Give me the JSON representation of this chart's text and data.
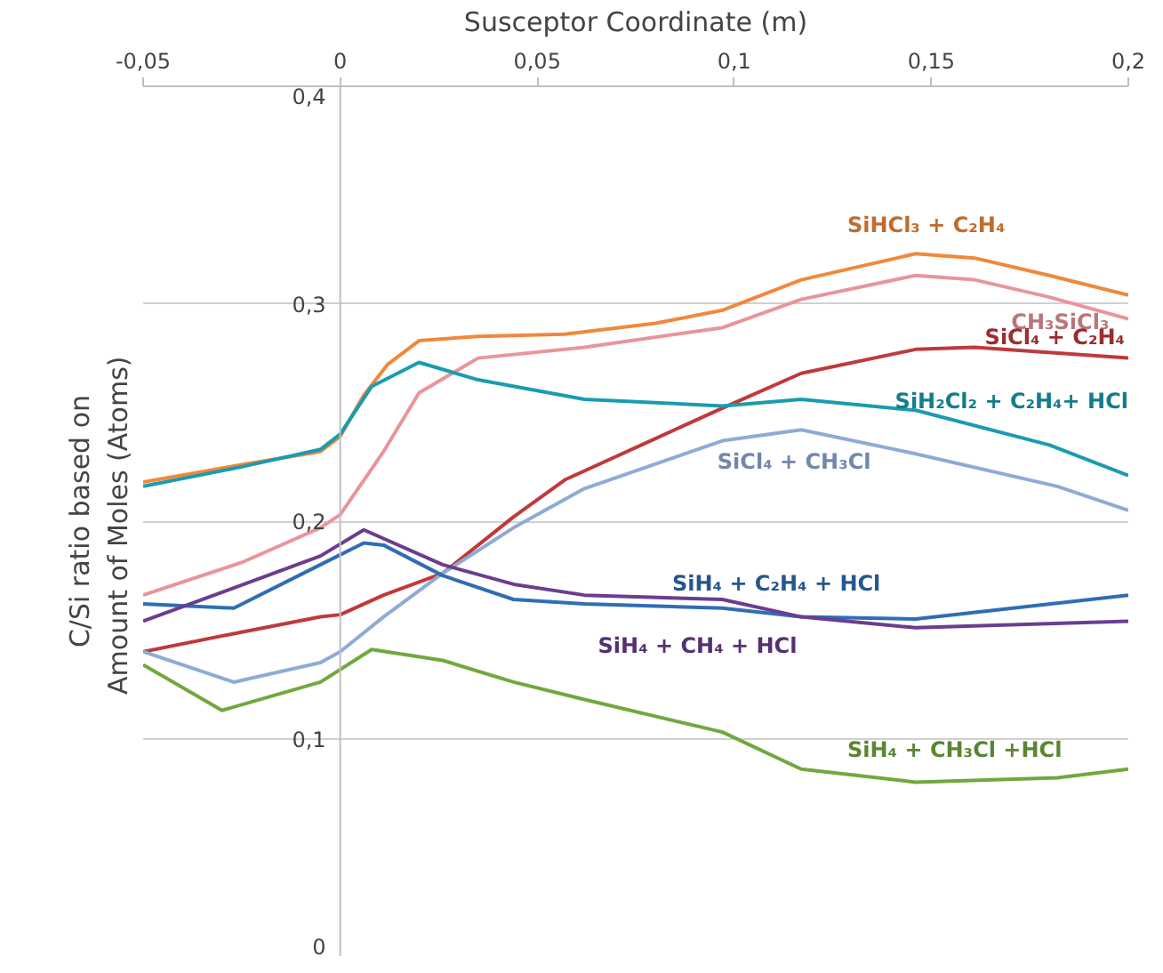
{
  "chart_data": {
    "type": "line",
    "xlabel": "Susceptor Coordinate (m)",
    "ylabel": "C/Si ratio based on\nAmount  of Moles (Atoms)",
    "xlim": [
      -0.05,
      0.2
    ],
    "ylim": [
      0,
      0.4
    ],
    "xticks": [
      {
        "value": -0.05,
        "label": "-0,05"
      },
      0,
      {
        "value": 0.05,
        "label": "0,05"
      },
      {
        "value": 0.1,
        "label": "0,1"
      },
      {
        "value": 0.15,
        "label": "0,15"
      },
      {
        "value": 0.2,
        "label": "0,2"
      }
    ],
    "yticks": [
      0,
      {
        "value": 0.1,
        "label": "0,1"
      },
      {
        "value": 0.2,
        "label": "0,2"
      },
      {
        "value": 0.3,
        "label": "0,3"
      },
      {
        "value": 0.4,
        "label": "0,4"
      }
    ],
    "grid": "y",
    "legend": false,
    "marker": "none",
    "line_style": "solid",
    "series": [
      {
        "name": "SiHCl₃ + C₂H₄",
        "color": "#f0883a",
        "x": [
          -0.05,
          -0.025,
          -0.005,
          0,
          0.006,
          0.012,
          0.02,
          0.035,
          0.057,
          0.08,
          0.097,
          0.117,
          0.146,
          0.161,
          0.18,
          0.2
        ],
        "values": [
          0.218,
          0.226,
          0.232,
          0.239,
          0.258,
          0.272,
          0.283,
          0.285,
          0.286,
          0.291,
          0.297,
          0.311,
          0.323,
          0.321,
          0.313,
          0.304
        ]
      },
      {
        "name": "CH₃SiCl₃",
        "color": "#e8959a",
        "x": [
          -0.05,
          -0.025,
          -0.005,
          0,
          0.011,
          0.02,
          0.035,
          0.062,
          0.097,
          0.117,
          0.146,
          0.161,
          0.18,
          0.2
        ],
        "values": [
          0.166,
          0.181,
          0.197,
          0.203,
          0.232,
          0.259,
          0.275,
          0.28,
          0.289,
          0.302,
          0.313,
          0.311,
          0.303,
          0.293
        ]
      },
      {
        "name": "SiCl₄ + C₂H₄",
        "color": "#c0393b",
        "x": [
          -0.05,
          -0.025,
          -0.005,
          0,
          0.011,
          0.026,
          0.044,
          0.057,
          0.08,
          0.097,
          0.117,
          0.146,
          0.161,
          0.2
        ],
        "values": [
          0.14,
          0.149,
          0.156,
          0.157,
          0.166,
          0.176,
          0.202,
          0.219,
          0.238,
          0.252,
          0.268,
          0.279,
          0.28,
          0.275
        ]
      },
      {
        "name": "SiH₂Cl₂ + C₂H₄+ HCl",
        "color": "#1a9bb0",
        "x": [
          -0.05,
          -0.025,
          -0.005,
          0,
          0.008,
          0.02,
          0.035,
          0.062,
          0.097,
          0.117,
          0.146,
          0.18,
          0.2
        ],
        "values": [
          0.216,
          0.225,
          0.233,
          0.24,
          0.262,
          0.273,
          0.265,
          0.256,
          0.253,
          0.256,
          0.251,
          0.235,
          0.221
        ]
      },
      {
        "name": "SiCl₄ + CH₃Cl",
        "color": "#8eabd6",
        "x": [
          -0.05,
          -0.027,
          -0.005,
          0,
          0.011,
          0.026,
          0.044,
          0.062,
          0.097,
          0.117,
          0.146,
          0.182,
          0.2
        ],
        "values": [
          0.14,
          0.126,
          0.135,
          0.14,
          0.156,
          0.176,
          0.197,
          0.215,
          0.237,
          0.242,
          0.231,
          0.216,
          0.205
        ]
      },
      {
        "name": "SiH₄ + C₂H₄ + HCl",
        "color": "#2f6db5",
        "x": [
          -0.05,
          -0.027,
          -0.005,
          0.006,
          0.011,
          0.026,
          0.044,
          0.062,
          0.097,
          0.117,
          0.146,
          0.2
        ],
        "values": [
          0.162,
          0.16,
          0.18,
          0.19,
          0.189,
          0.175,
          0.164,
          0.162,
          0.16,
          0.156,
          0.155,
          0.166
        ]
      },
      {
        "name": "SiH₄ + CH₄ + HCl",
        "color": "#6b3d8e",
        "x": [
          -0.05,
          -0.005,
          0.006,
          0.026,
          0.044,
          0.062,
          0.097,
          0.117,
          0.146,
          0.2
        ],
        "values": [
          0.154,
          0.184,
          0.196,
          0.18,
          0.171,
          0.166,
          0.164,
          0.156,
          0.151,
          0.154
        ]
      },
      {
        "name": "SiH₄ + CH₃Cl +HCl",
        "color": "#70a83f",
        "x": [
          -0.05,
          -0.03,
          -0.005,
          0.008,
          0.026,
          0.044,
          0.062,
          0.097,
          0.117,
          0.146,
          0.182,
          0.2
        ],
        "values": [
          0.134,
          0.113,
          0.126,
          0.141,
          0.136,
          0.126,
          0.118,
          0.103,
          0.086,
          0.08,
          0.082,
          0.086
        ]
      }
    ]
  }
}
